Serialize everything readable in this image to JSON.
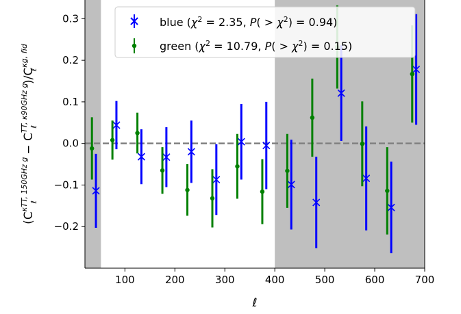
{
  "chart_data": {
    "type": "scatter",
    "title": "",
    "xlabel": "ℓ",
    "ylabel": {
      "open": "(C",
      "sub1": "ℓ",
      "sup1": "κTT, 150GHz g",
      "minus": " − C",
      "sub2": "ℓ",
      "sup2": "TT, κ90GHz g",
      "slash": ")/C",
      "sub3": "ℓ",
      "sup3": "κg, fid"
    },
    "xlim": [
      20,
      700
    ],
    "ylim": [
      -0.3,
      0.345
    ],
    "x_ticks": [
      100,
      200,
      300,
      400,
      500,
      600,
      700
    ],
    "y_ticks": [
      -0.2,
      -0.1,
      0.0,
      0.1,
      0.2,
      0.3
    ],
    "x_tick_labels": [
      "100",
      "200",
      "300",
      "400",
      "500",
      "600",
      "700"
    ],
    "y_tick_labels": [
      "−0.2",
      "−0.1",
      "0.0",
      "0.1",
      "0.2",
      "0.3"
    ],
    "reference_line_y": 0.0,
    "shaded_x_ranges": [
      [
        20,
        52
      ],
      [
        400,
        700
      ]
    ],
    "legend_position": "upper-center",
    "series": [
      {
        "name": "blue",
        "legend_label": {
          "name": "blue",
          "chi2": "2.35",
          "p": "0.94"
        },
        "color": "#0000ff",
        "marker": "x",
        "points": [
          {
            "x": 42,
            "y": -0.114,
            "err": 0.089
          },
          {
            "x": 83,
            "y": 0.044,
            "err": 0.058
          },
          {
            "x": 133,
            "y": -0.032,
            "err": 0.066
          },
          {
            "x": 183,
            "y": -0.033,
            "err": 0.072
          },
          {
            "x": 233,
            "y": -0.02,
            "err": 0.075
          },
          {
            "x": 283,
            "y": -0.087,
            "err": 0.085
          },
          {
            "x": 333,
            "y": 0.004,
            "err": 0.091
          },
          {
            "x": 383,
            "y": -0.005,
            "err": 0.105
          },
          {
            "x": 433,
            "y": -0.099,
            "err": 0.108
          },
          {
            "x": 483,
            "y": -0.142,
            "err": 0.11
          },
          {
            "x": 533,
            "y": 0.121,
            "err": 0.115
          },
          {
            "x": 583,
            "y": -0.084,
            "err": 0.125
          },
          {
            "x": 633,
            "y": -0.154,
            "err": 0.11
          },
          {
            "x": 683,
            "y": 0.178,
            "err": 0.133
          }
        ]
      },
      {
        "name": "green",
        "legend_label": {
          "name": "green",
          "chi2": "10.79",
          "p": "0.15"
        },
        "color": "#008000",
        "marker": "o",
        "points": [
          {
            "x": 34,
            "y": -0.012,
            "err": 0.075
          },
          {
            "x": 75,
            "y": 0.008,
            "err": 0.047
          },
          {
            "x": 125,
            "y": 0.025,
            "err": 0.049
          },
          {
            "x": 175,
            "y": -0.065,
            "err": 0.056
          },
          {
            "x": 225,
            "y": -0.112,
            "err": 0.062
          },
          {
            "x": 275,
            "y": -0.132,
            "err": 0.07
          },
          {
            "x": 325,
            "y": -0.055,
            "err": 0.078
          },
          {
            "x": 375,
            "y": -0.116,
            "err": 0.078
          },
          {
            "x": 425,
            "y": -0.066,
            "err": 0.089
          },
          {
            "x": 475,
            "y": 0.062,
            "err": 0.094
          },
          {
            "x": 525,
            "y": 0.232,
            "err": 0.1
          },
          {
            "x": 575,
            "y": -0.001,
            "err": 0.102
          },
          {
            "x": 625,
            "y": -0.114,
            "err": 0.105
          },
          {
            "x": 675,
            "y": 0.167,
            "err": 0.117
          }
        ]
      }
    ]
  }
}
